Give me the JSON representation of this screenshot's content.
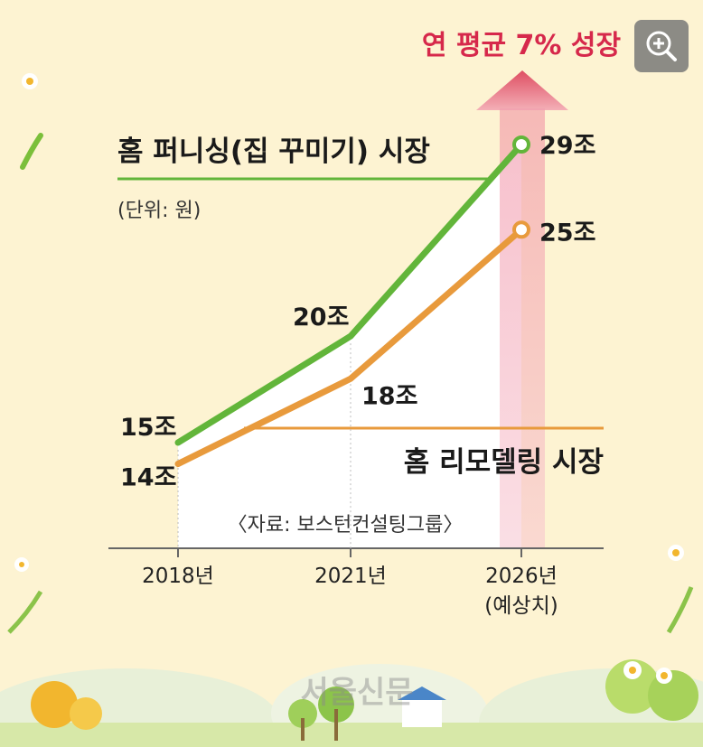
{
  "chart_data": {
    "type": "line",
    "categories": [
      "2018년",
      "2021년",
      "2026년"
    ],
    "category_note": "(예상치)",
    "ylim": [
      10,
      32
    ],
    "series": [
      {
        "name": "홈 퍼니싱(집 꾸미기) 시장",
        "color": "#62b53a",
        "values": [
          15,
          20,
          29
        ],
        "data_labels": [
          "15조",
          "20조",
          "29조"
        ]
      },
      {
        "name": "홈 리모델링 시장",
        "color": "#e89a3c",
        "values": [
          14,
          18,
          25
        ],
        "data_labels": [
          "14조",
          "18조",
          "25조"
        ]
      }
    ],
    "unit_note": "(단위: 원)",
    "growth_annotation": "연 평균 7% 성장",
    "source": "〈자료: 보스턴컨설팅그룹〉"
  },
  "watermark": "서울신문",
  "zoom_icon": "zoom-in-icon"
}
